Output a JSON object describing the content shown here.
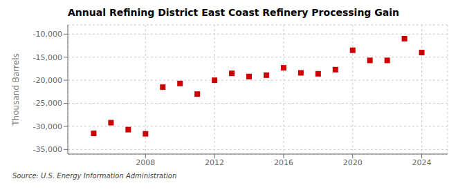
{
  "chart_data": {
    "type": "scatter",
    "title": "Annual Refining District East Coast Refinery Processing Gain",
    "ylabel": "Thousand Barrels",
    "annotations": [
      "Source: U.S. Energy Information Administration"
    ],
    "x": [
      2005,
      2006,
      2007,
      2008,
      2009,
      2010,
      2011,
      2012,
      2013,
      2014,
      2015,
      2016,
      2017,
      2018,
      2019,
      2020,
      2021,
      2022,
      2023,
      2024
    ],
    "values": [
      -31500,
      -29200,
      -30700,
      -31600,
      -21500,
      -20700,
      -23000,
      -20000,
      -18500,
      -19200,
      -18900,
      -17300,
      -18400,
      -18600,
      -17700,
      -13500,
      -15700,
      -15700,
      -11000,
      -14000
    ],
    "color": "#cc0000",
    "marker": "square",
    "xlim": [
      2003.5,
      2025.5
    ],
    "xticks": [
      2008,
      2012,
      2016,
      2020,
      2024
    ],
    "ylim": [
      -36000,
      -8000
    ],
    "yticks": [
      {
        "value": -10000,
        "label": "-10,000"
      },
      {
        "value": -15000,
        "label": "-15,000"
      },
      {
        "value": -20000,
        "label": "-20,000"
      },
      {
        "value": -25000,
        "label": "-25,000"
      },
      {
        "value": -30000,
        "label": "-30,000"
      },
      {
        "value": -35000,
        "label": "-35,000"
      }
    ],
    "grid": true
  }
}
